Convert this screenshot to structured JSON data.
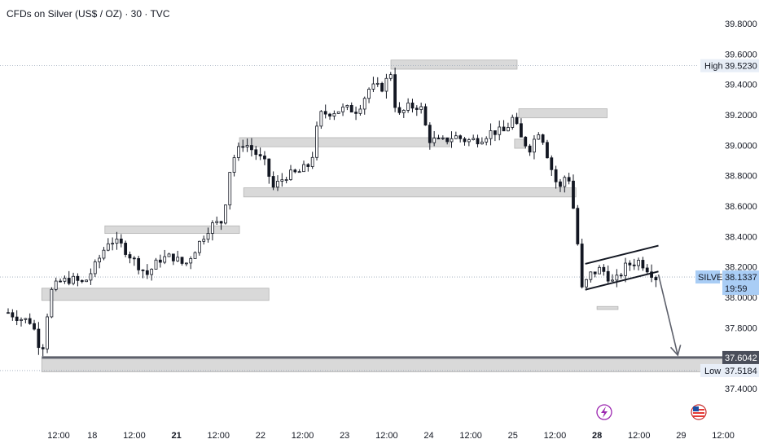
{
  "title": "CFDs on Silver (US$ / OZ) · 30 · TVC",
  "colors": {
    "candle": "#131722",
    "zone_fill": "#d9d9d9",
    "zone_stroke": "#b4b4b4",
    "dotted": "#9aa7b8",
    "current_tag": "#a9cdf5",
    "hl_tag": "#e8eef7",
    "support_line": "#5d606b",
    "arrow": "#5d606b"
  },
  "chart_data": {
    "type": "candlestick",
    "symbol": "SILVER",
    "ylim": [
      37.32,
      39.88
    ],
    "y_ticks": [
      "39.8000",
      "39.6000",
      "39.4000",
      "39.2000",
      "39.0000",
      "38.8000",
      "38.6000",
      "38.4000",
      "38.2000",
      "38.0000",
      "37.8000",
      "37.4000"
    ],
    "x_ticks": [
      {
        "label": "12:00",
        "t": 0.6
      },
      {
        "label": "18",
        "t": 1.0
      },
      {
        "label": "12:00",
        "t": 1.5
      },
      {
        "label": "21",
        "t": 2.0
      },
      {
        "label": "12:00",
        "t": 2.5
      },
      {
        "label": "22",
        "t": 3.0
      },
      {
        "label": "12:00",
        "t": 3.5
      },
      {
        "label": "23",
        "t": 4.0
      },
      {
        "label": "12:00",
        "t": 4.5
      },
      {
        "label": "24",
        "t": 5.0
      },
      {
        "label": "12:00",
        "t": 5.5
      },
      {
        "label": "25",
        "t": 6.0
      },
      {
        "label": "12:00",
        "t": 6.5
      },
      {
        "label": "28",
        "t": 7.0
      },
      {
        "label": "12:00",
        "t": 7.5
      },
      {
        "label": "29",
        "t": 8.0
      },
      {
        "label": "12:00",
        "t": 8.5
      }
    ],
    "path_points": [
      [
        0.0,
        37.9
      ],
      [
        0.15,
        37.86
      ],
      [
        0.28,
        37.84
      ],
      [
        0.4,
        37.63
      ],
      [
        0.5,
        38.03
      ],
      [
        0.6,
        38.1
      ],
      [
        0.75,
        38.12
      ],
      [
        0.9,
        38.09
      ],
      [
        1.05,
        38.22
      ],
      [
        1.2,
        38.38
      ],
      [
        1.35,
        38.34
      ],
      [
        1.5,
        38.24
      ],
      [
        1.65,
        38.15
      ],
      [
        1.8,
        38.25
      ],
      [
        1.95,
        38.27
      ],
      [
        2.1,
        38.21
      ],
      [
        2.25,
        38.34
      ],
      [
        2.4,
        38.47
      ],
      [
        2.55,
        38.5
      ],
      [
        2.65,
        38.89
      ],
      [
        2.8,
        39.02
      ],
      [
        2.92,
        38.96
      ],
      [
        3.05,
        38.88
      ],
      [
        3.15,
        38.72
      ],
      [
        3.3,
        38.8
      ],
      [
        3.45,
        38.82
      ],
      [
        3.6,
        38.88
      ],
      [
        3.7,
        39.2
      ],
      [
        3.85,
        39.22
      ],
      [
        4.0,
        39.24
      ],
      [
        4.15,
        39.23
      ],
      [
        4.3,
        39.38
      ],
      [
        4.45,
        39.38
      ],
      [
        4.55,
        39.48
      ],
      [
        4.62,
        39.18
      ],
      [
        4.75,
        39.25
      ],
      [
        4.9,
        39.26
      ],
      [
        5.0,
        39.04
      ],
      [
        5.15,
        39.02
      ],
      [
        5.3,
        39.06
      ],
      [
        5.45,
        39.03
      ],
      [
        5.6,
        39.04
      ],
      [
        5.75,
        39.09
      ],
      [
        5.9,
        39.09
      ],
      [
        6.0,
        39.18
      ],
      [
        6.1,
        39.04
      ],
      [
        6.2,
        38.98
      ],
      [
        6.32,
        39.11
      ],
      [
        6.45,
        38.86
      ],
      [
        6.55,
        38.7
      ],
      [
        6.65,
        38.84
      ],
      [
        6.75,
        38.47
      ],
      [
        6.82,
        38.05
      ],
      [
        6.92,
        38.15
      ],
      [
        7.05,
        38.19
      ],
      [
        7.2,
        38.09
      ],
      [
        7.35,
        38.21
      ],
      [
        7.5,
        38.24
      ],
      [
        7.6,
        38.19
      ],
      [
        7.7,
        38.13
      ]
    ],
    "candle_count": 150,
    "zones": [
      {
        "t0": 0.4,
        "t1": 3.1,
        "ylo": 37.98,
        "yhi": 38.06
      },
      {
        "t0": 1.15,
        "t1": 2.75,
        "ylo": 38.42,
        "yhi": 38.47
      },
      {
        "t0": 2.75,
        "t1": 5.25,
        "ylo": 38.99,
        "yhi": 39.05
      },
      {
        "t0": 2.8,
        "t1": 6.75,
        "ylo": 38.66,
        "yhi": 38.72
      },
      {
        "t0": 4.55,
        "t1": 6.05,
        "ylo": 39.5,
        "yhi": 39.56
      },
      {
        "t0": 6.07,
        "t1": 7.12,
        "ylo": 39.18,
        "yhi": 39.24
      },
      {
        "t0": 6.02,
        "t1": 6.15,
        "ylo": 38.98,
        "yhi": 39.04
      },
      {
        "t0": 7.0,
        "t1": 7.25,
        "ylo": 37.92,
        "yhi": 37.94
      },
      {
        "t0": 0.4,
        "t1": 8.88,
        "ylo": 37.51,
        "yhi": 37.6
      }
    ],
    "channel": {
      "upper": [
        [
          6.86,
          38.22
        ],
        [
          7.73,
          38.34
        ]
      ],
      "lower": [
        [
          6.86,
          38.05
        ],
        [
          7.73,
          38.17
        ]
      ]
    },
    "arrow": {
      "from": [
        7.73,
        38.15
      ],
      "to": [
        7.96,
        37.62
      ]
    },
    "support_level": 37.6042,
    "high": {
      "label": "High",
      "value": "39.5230",
      "v": 39.523
    },
    "low": {
      "label": "Low",
      "value": "37.5184",
      "v": 37.5184
    },
    "current": {
      "symbol": "SILVER",
      "value": "38.1337",
      "v": 38.1337,
      "countdown": "19:59"
    },
    "support_tag": "37.6042"
  }
}
